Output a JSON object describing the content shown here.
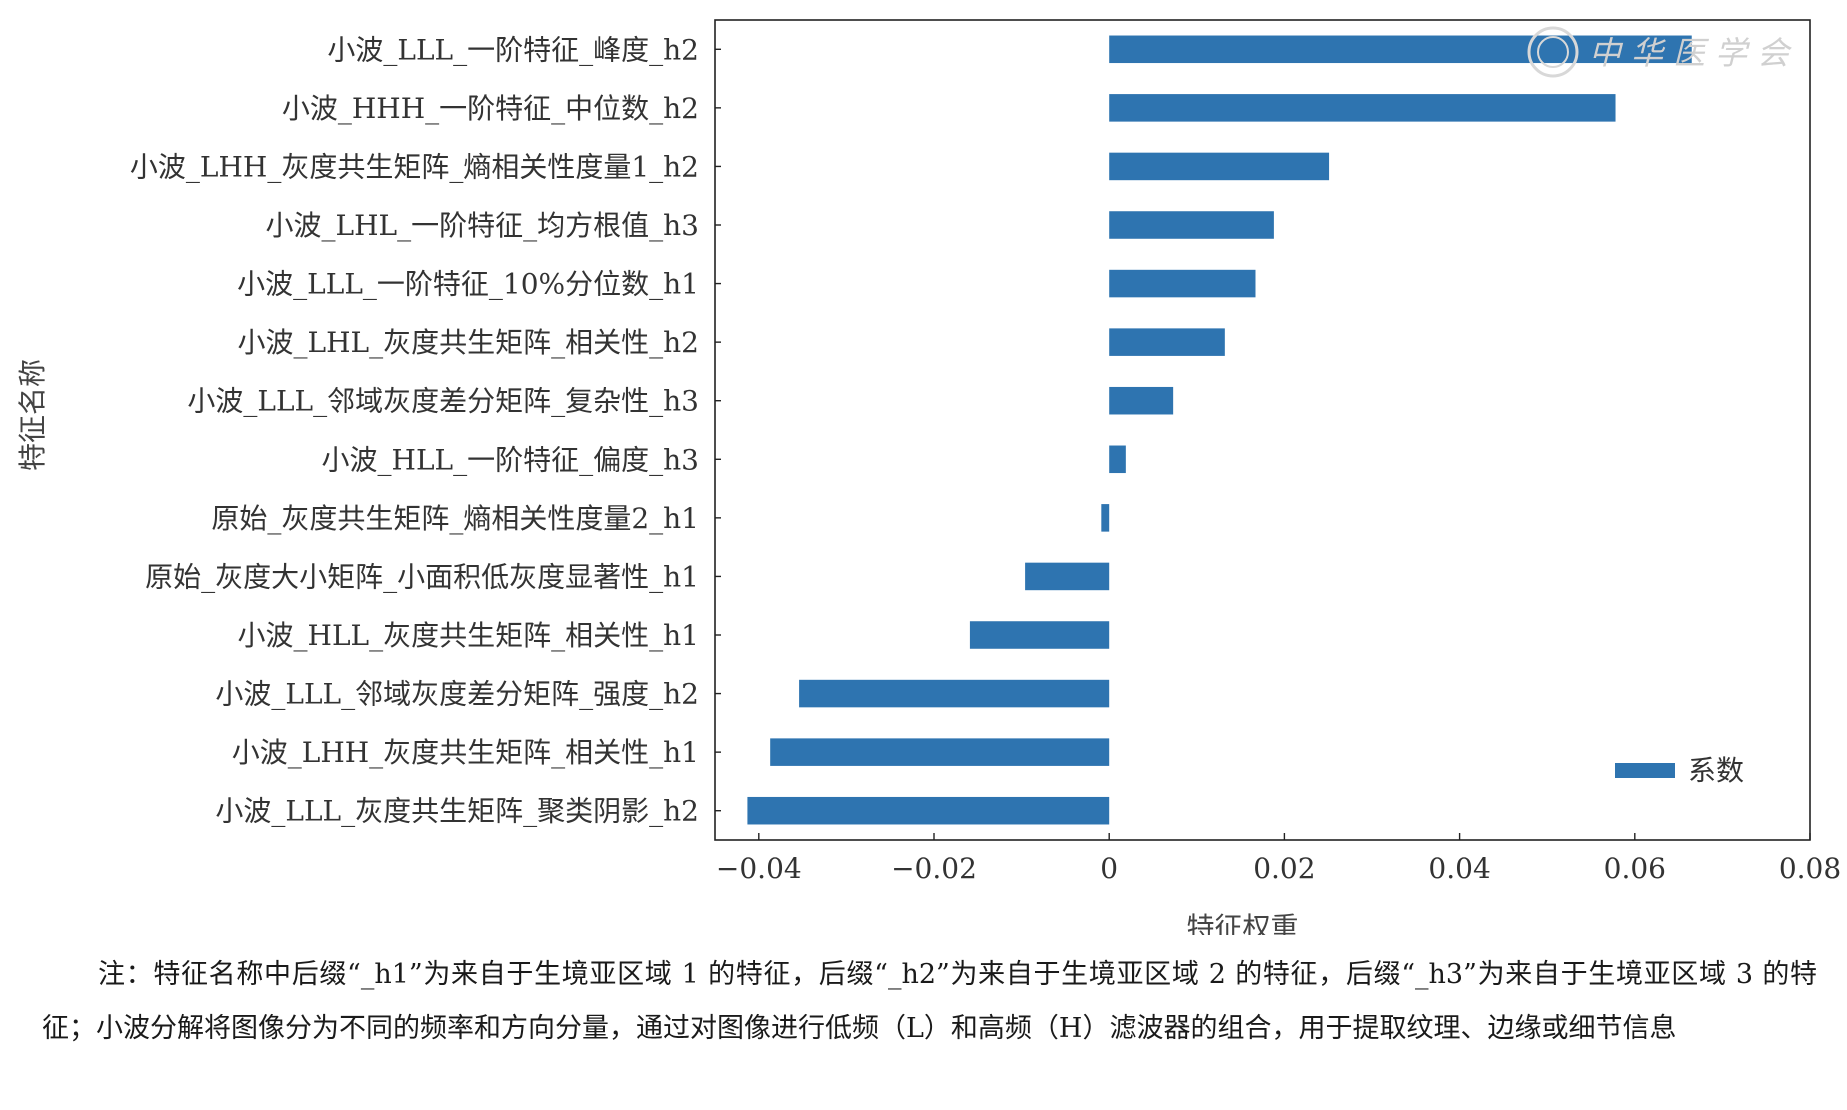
{
  "chart_data": {
    "type": "bar",
    "orientation": "horizontal",
    "categories": [
      "小波_LLL_一阶特征_峰度_h2",
      "小波_HHH_一阶特征_中位数_h2",
      "小波_LHH_灰度共生矩阵_熵相关性度量1_h2",
      "小波_LHL_一阶特征_均方根值_h3",
      "小波_LLL_一阶特征_10%分位数_h1",
      "小波_LHL_灰度共生矩阵_相关性_h2",
      "小波_LLL_邻域灰度差分矩阵_复杂性_h3",
      "小波_HLL_一阶特征_偏度_h3",
      "原始_灰度共生矩阵_熵相关性度量2_h1",
      "原始_灰度大小矩阵_小面积低灰度显著性_h1",
      "小波_HLL_灰度共生矩阵_相关性_h1",
      "小波_LLL_邻域灰度差分矩阵_强度_h2",
      "小波_LHH_灰度共生矩阵_相关性_h1",
      "小波_LLL_灰度共生矩阵_聚类阴影_h2"
    ],
    "series": [
      {
        "name": "系数",
        "values": [
          0.0665,
          0.0578,
          0.0251,
          0.0188,
          0.0167,
          0.0132,
          0.0073,
          0.0019,
          -0.0009,
          -0.0096,
          -0.0159,
          -0.0354,
          -0.0387,
          -0.0413
        ]
      }
    ],
    "xlabel": "特征权重",
    "ylabel": "特征名称",
    "xlim": [
      -0.045,
      0.08
    ],
    "xticks": [
      -0.04,
      -0.02,
      0,
      0.02,
      0.04,
      0.06,
      0.08
    ],
    "xtick_labels": [
      "−0.04",
      "−0.02",
      "0",
      "0.02",
      "0.04",
      "0.06",
      "0.08"
    ],
    "grid": false,
    "legend_position": "bottom-right",
    "bar_color": "#2e74b0"
  },
  "watermark_text": "中华医学会",
  "note": "注：特征名称中后缀“_h1”为来自于生境亚区域 1 的特征，后缀“_h2”为来自于生境亚区域 2 的特征，后缀“_h3”为来自于生境亚区域 3 的特征；小波分解将图像分为不同的频率和方向分量，通过对图像进行低频（L）和高频（H）滤波器的组合，用于提取纹理、边缘或细节信息"
}
